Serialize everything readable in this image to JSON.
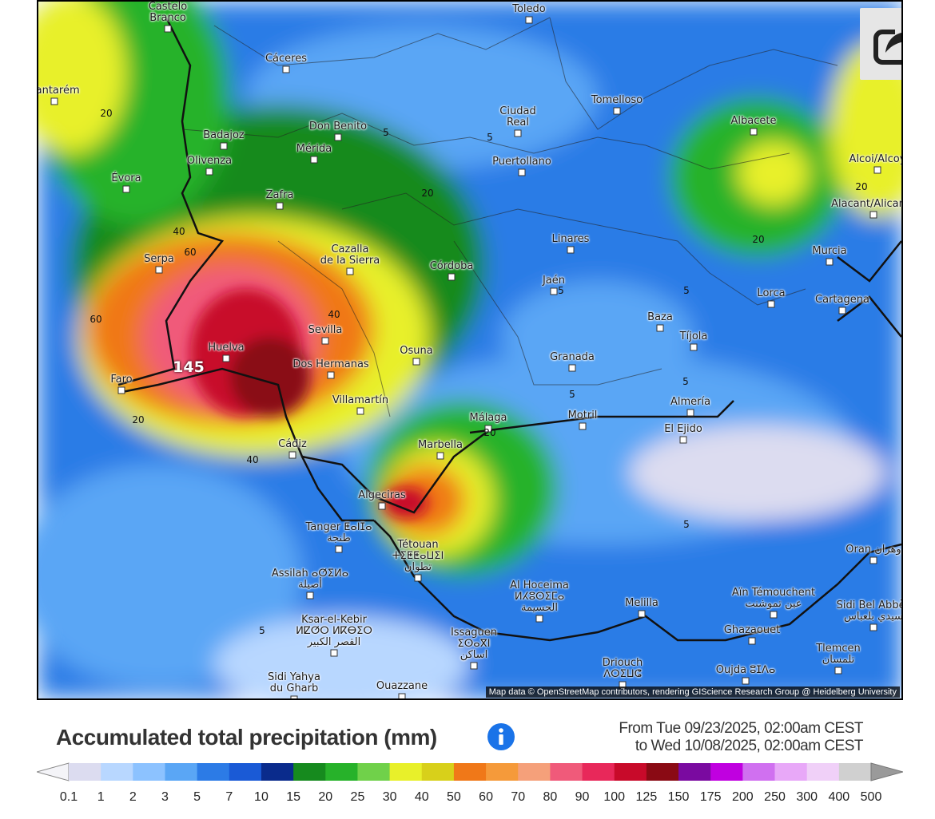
{
  "map": {
    "attribution": "Map data © OpenStreetMap contributors, rendering GIScience Research Group @ Heidelberg University",
    "max_label": "145",
    "places": [
      {
        "name": "Castelo\nBranco"
      },
      {
        "name": "Toledo"
      },
      {
        "name": "Cáceres"
      },
      {
        "name": "Santarém"
      },
      {
        "name": "Tomelloso"
      },
      {
        "name": "Ciudad\nReal"
      },
      {
        "name": "Albacete"
      },
      {
        "name": "Badajoz"
      },
      {
        "name": "Don Benito"
      },
      {
        "name": "Mérida"
      },
      {
        "name": "Olivenza"
      },
      {
        "name": "Puertollano"
      },
      {
        "name": "Évora"
      },
      {
        "name": "Zafra"
      },
      {
        "name": "Alcoi/Alcoy"
      },
      {
        "name": "Alacant/Alicante"
      },
      {
        "name": "Linares"
      },
      {
        "name": "Serpa"
      },
      {
        "name": "Cazalla\nde la Sierra"
      },
      {
        "name": "Córdoba"
      },
      {
        "name": "Murcia"
      },
      {
        "name": "Jaén"
      },
      {
        "name": "Lorca"
      },
      {
        "name": "Cartagena"
      },
      {
        "name": "Sevilla"
      },
      {
        "name": "Baza"
      },
      {
        "name": "Tíjola"
      },
      {
        "name": "Huelva"
      },
      {
        "name": "Osuna"
      },
      {
        "name": "Granada"
      },
      {
        "name": "Dos Hermanas"
      },
      {
        "name": "Faro"
      },
      {
        "name": "Villamartín"
      },
      {
        "name": "Almería"
      },
      {
        "name": "Málaga"
      },
      {
        "name": "Motril"
      },
      {
        "name": "El Ejido"
      },
      {
        "name": "Marbella"
      },
      {
        "name": "Cádiz"
      },
      {
        "name": "Algeciras"
      },
      {
        "name": "Tanger ⵟⴰⵏⵊⴰ\nطنجة"
      },
      {
        "name": "Tétouan\nⵜⵉⵟⵟⴰⵡⵉⵏ\nتطوان"
      },
      {
        "name": "Oran وهران"
      },
      {
        "name": "Assilah ⴰⵚⵉⵍⴰ\nأصيلة"
      },
      {
        "name": "Al Hoceima\nⵍⵃⵓⵙⵉⵎⴰ\nالحسيمة"
      },
      {
        "name": "Aïn Témouchent\nعين تموشنت"
      },
      {
        "name": "Melilla"
      },
      {
        "name": "Sidi Bel Abbès\nسيدي بلعباس"
      },
      {
        "name": "Ksar-el-Kebir\nⵍⵇⵚⵔ ⵍⴽⴱⵉⵔ\nالقصر الكبير"
      },
      {
        "name": "Issaguen\nⵉⵙⴰⴳⵏ\nاساكن"
      },
      {
        "name": "Ghazaouet"
      },
      {
        "name": "Tlemcen\nتلمسان"
      },
      {
        "name": "Driouch\nⴷⵔⵉⵡⵛ"
      },
      {
        "name": "Oujda ⵓⵊⴷⴰ"
      },
      {
        "name": "Sidi Yahya\ndu Gharb"
      },
      {
        "name": "Ouazzane"
      }
    ],
    "isolines": [
      "20",
      "5",
      "5",
      "20",
      "40",
      "60",
      "60",
      "40",
      "20",
      "40",
      "5",
      "5",
      "5",
      "5",
      "20",
      "20",
      "5",
      "5",
      "20"
    ]
  },
  "share_button": {
    "icon": "share-icon"
  },
  "legend": {
    "title": "Accumulated total precipitation (mm)",
    "info_icon": "info-icon",
    "period_from": "From Tue 09/23/2025, 02:00am CEST",
    "period_to": "to Wed 10/08/2025, 02:00am CEST",
    "scale_values": [
      "0.1",
      "1",
      "2",
      "3",
      "5",
      "7",
      "10",
      "15",
      "20",
      "25",
      "30",
      "40",
      "50",
      "60",
      "70",
      "80",
      "90",
      "100",
      "125",
      "150",
      "175",
      "200",
      "250",
      "300",
      "400",
      "500"
    ],
    "scale_colors": [
      "#dcdcf0",
      "#b8d7ff",
      "#8cc2ff",
      "#5aa6f5",
      "#2c7be6",
      "#1a5ad6",
      "#0a2b8c",
      "#168a1e",
      "#27b22a",
      "#70d14a",
      "#e8f02a",
      "#d8d01a",
      "#f07818",
      "#f59a3a",
      "#f5a07a",
      "#f05a7a",
      "#e8285a",
      "#c80a2a",
      "#8a0a14",
      "#7a0aa0",
      "#c000e0",
      "#d070f0",
      "#e8a8f8",
      "#f0d0f8",
      "#d0d0d0"
    ]
  }
}
